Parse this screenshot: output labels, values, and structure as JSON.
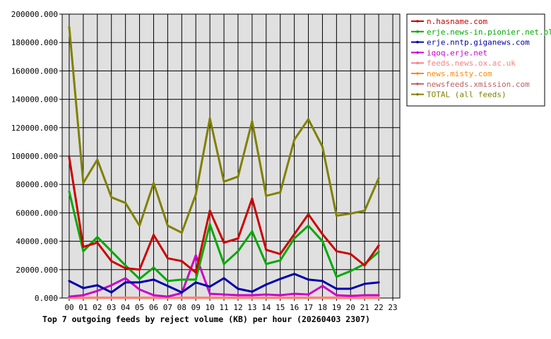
{
  "chart_data": {
    "type": "line",
    "title": "Top 7 outgoing feeds by reject volume (KB) per hour (20260403 2307)",
    "xlabel": "",
    "ylabel": "",
    "x_labels": [
      "00",
      "01",
      "02",
      "03",
      "04",
      "05",
      "06",
      "07",
      "08",
      "09",
      "10",
      "11",
      "12",
      "13",
      "14",
      "15",
      "16",
      "17",
      "18",
      "19",
      "20",
      "21",
      "22",
      "23"
    ],
    "y_ticks": [
      "0.000",
      "20000.000",
      "40000.000",
      "60000.000",
      "80000.000",
      "100000.000",
      "120000.000",
      "140000.000",
      "160000.000",
      "180000.000",
      "200000.000"
    ],
    "ylim": [
      0,
      200000
    ],
    "grid": true,
    "legend_position": "right",
    "plot_background": "#e0e0e0",
    "series": [
      {
        "name": "n.hasname.com",
        "color": "#cc0000",
        "values": [
          99000,
          36000,
          39000,
          26000,
          21000,
          20000,
          44500,
          28000,
          26000,
          18000,
          61500,
          39000,
          42000,
          70000,
          34000,
          31000,
          45000,
          59000,
          45000,
          33000,
          31000,
          23000,
          37000
        ]
      },
      {
        "name": "erje.news-in.pionier.net.pl",
        "color": "#00aa00",
        "values": [
          75000,
          33000,
          43000,
          33000,
          23000,
          13500,
          21500,
          12000,
          13000,
          13000,
          52000,
          24000,
          33000,
          47000,
          24000,
          26500,
          42000,
          51000,
          40000,
          15000,
          19000,
          24000,
          32500
        ]
      },
      {
        "name": "erje.nntp.giganews.com",
        "color": "#0000aa",
        "values": [
          12000,
          7000,
          9000,
          4000,
          11000,
          11000,
          13000,
          8500,
          4000,
          11000,
          8000,
          14000,
          6500,
          4500,
          9500,
          13500,
          17000,
          13000,
          12000,
          6500,
          6500,
          10000,
          11000
        ]
      },
      {
        "name": "iqoq.erje.net",
        "color": "#cc00cc",
        "values": [
          1000,
          2000,
          5000,
          9000,
          14000,
          6000,
          2000,
          1000,
          3500,
          30000,
          3000,
          2500,
          2000,
          2000,
          2500,
          2000,
          3000,
          2500,
          8500,
          2000,
          1500,
          2000,
          2000
        ]
      },
      {
        "name": "feeds.news.ox.ac.uk",
        "color": "#ff8080",
        "values": [
          300,
          300,
          300,
          300,
          300,
          300,
          300,
          300,
          300,
          300,
          300,
          300,
          300,
          300,
          300,
          300,
          300,
          300,
          300,
          300,
          300,
          300,
          300
        ]
      },
      {
        "name": "news.misty.com",
        "color": "#ff8800",
        "values": [
          200,
          200,
          200,
          200,
          200,
          200,
          200,
          200,
          200,
          200,
          200,
          200,
          200,
          200,
          200,
          200,
          200,
          200,
          200,
          200,
          200,
          200,
          200
        ]
      },
      {
        "name": "newsfeeds.xmission.com",
        "color": "#c06060",
        "values": [
          100,
          100,
          100,
          100,
          100,
          100,
          100,
          100,
          100,
          100,
          100,
          100,
          100,
          100,
          100,
          100,
          100,
          100,
          100,
          100,
          100,
          100,
          100
        ]
      },
      {
        "name": "TOTAL (all feeds)",
        "color": "#808000",
        "values": [
          191000,
          81000,
          97500,
          71000,
          67000,
          51000,
          81000,
          51000,
          46000,
          73000,
          126500,
          82000,
          85500,
          124500,
          72000,
          74500,
          111500,
          126000,
          106500,
          58000,
          59500,
          61500,
          84500
        ]
      }
    ]
  }
}
